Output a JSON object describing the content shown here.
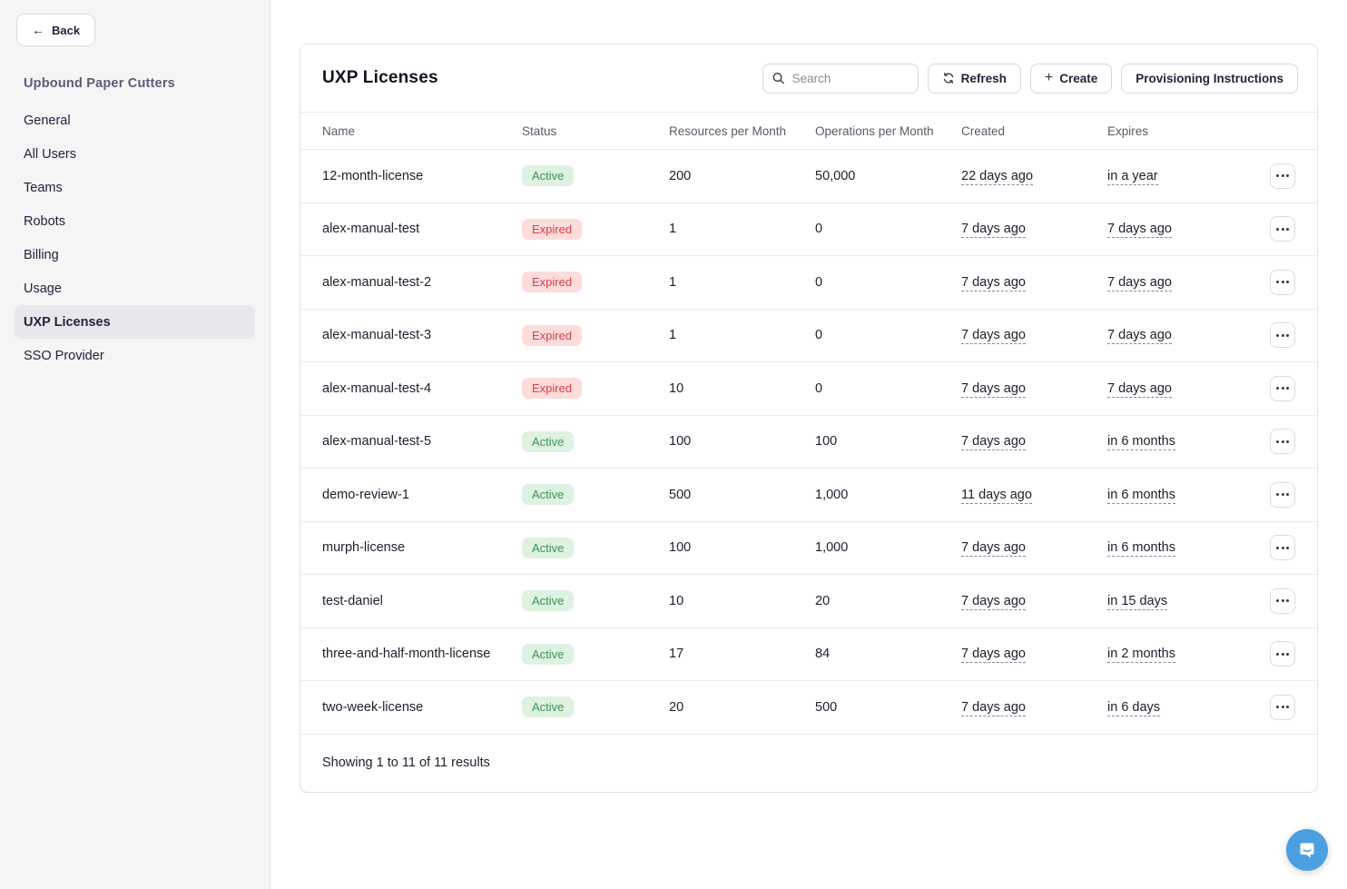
{
  "sidebar": {
    "back_label": "Back",
    "org_name": "Upbound Paper Cutters",
    "items": [
      {
        "label": "General",
        "active": false
      },
      {
        "label": "All Users",
        "active": false
      },
      {
        "label": "Teams",
        "active": false
      },
      {
        "label": "Robots",
        "active": false
      },
      {
        "label": "Billing",
        "active": false
      },
      {
        "label": "Usage",
        "active": false
      },
      {
        "label": "UXP Licenses",
        "active": true
      },
      {
        "label": "SSO Provider",
        "active": false
      }
    ]
  },
  "header": {
    "title": "UXP Licenses",
    "search_placeholder": "Search",
    "refresh_label": "Refresh",
    "create_label": "Create",
    "provisioning_label": "Provisioning Instructions"
  },
  "table": {
    "columns": [
      "Name",
      "Status",
      "Resources per Month",
      "Operations per Month",
      "Created",
      "Expires"
    ],
    "rows": [
      {
        "name": "12-month-license",
        "status": "Active",
        "resources": "200",
        "operations": "50,000",
        "created": "22 days ago",
        "expires": "in a year"
      },
      {
        "name": "alex-manual-test",
        "status": "Expired",
        "resources": "1",
        "operations": "0",
        "created": "7 days ago",
        "expires": "7 days ago"
      },
      {
        "name": "alex-manual-test-2",
        "status": "Expired",
        "resources": "1",
        "operations": "0",
        "created": "7 days ago",
        "expires": "7 days ago"
      },
      {
        "name": "alex-manual-test-3",
        "status": "Expired",
        "resources": "1",
        "operations": "0",
        "created": "7 days ago",
        "expires": "7 days ago"
      },
      {
        "name": "alex-manual-test-4",
        "status": "Expired",
        "resources": "10",
        "operations": "0",
        "created": "7 days ago",
        "expires": "7 days ago"
      },
      {
        "name": "alex-manual-test-5",
        "status": "Active",
        "resources": "100",
        "operations": "100",
        "created": "7 days ago",
        "expires": "in 6 months"
      },
      {
        "name": "demo-review-1",
        "status": "Active",
        "resources": "500",
        "operations": "1,000",
        "created": "11 days ago",
        "expires": "in 6 months"
      },
      {
        "name": "murph-license",
        "status": "Active",
        "resources": "100",
        "operations": "1,000",
        "created": "7 days ago",
        "expires": "in 6 months"
      },
      {
        "name": "test-daniel",
        "status": "Active",
        "resources": "10",
        "operations": "20",
        "created": "7 days ago",
        "expires": "in 15 days"
      },
      {
        "name": "three-and-half-month-license",
        "status": "Active",
        "resources": "17",
        "operations": "84",
        "created": "7 days ago",
        "expires": "in 2 months"
      },
      {
        "name": "two-week-license",
        "status": "Active",
        "resources": "20",
        "operations": "500",
        "created": "7 days ago",
        "expires": "in 6 days"
      }
    ],
    "footer_text": "Showing 1 to 11 of 11 results"
  },
  "icons": {
    "back_arrow": "←",
    "search": "magnifier",
    "refresh": "circular-arrows",
    "create": "+",
    "more": "ellipsis",
    "chat": "speech-bubble-smile"
  },
  "colors": {
    "sidebar_bg": "#f5f5f6",
    "border": "#e4e4e8",
    "nav_active_bg": "#e8e8ec",
    "org_name_text": "#5c5c78",
    "active_pill_bg": "#def1e2",
    "active_pill_text": "#3c9552",
    "expired_pill_bg": "#fcdcdc",
    "expired_pill_text": "#d64242",
    "chat_blue": "#4aa0e0"
  }
}
